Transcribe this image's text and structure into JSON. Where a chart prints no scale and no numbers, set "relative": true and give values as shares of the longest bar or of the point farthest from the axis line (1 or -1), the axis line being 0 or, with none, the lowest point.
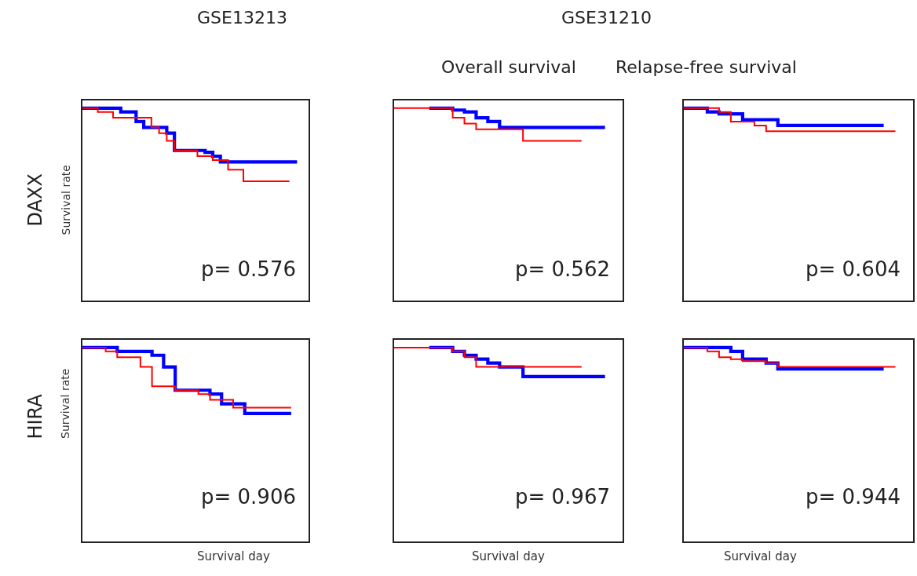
{
  "chart_data": [
    {
      "type": "step",
      "title": "GSE13213",
      "ylabel": "Survival rate",
      "relative": true,
      "annotations": [
        "p= 0.576",
        "DAXX"
      ],
      "categories": [
        null,
        null,
        null,
        null,
        null,
        null,
        null,
        null,
        null,
        null,
        null,
        null,
        null,
        null,
        null,
        null,
        null,
        null,
        null,
        null,
        null,
        null,
        null,
        null,
        null,
        null,
        null,
        null,
        null,
        null
      ],
      "series": [
        {
          "color": "#0000ff",
          "values": [
            1,
            1,
            1,
            1,
            1,
            0.98,
            0.98,
            0.93,
            0.9,
            0.9,
            0.9,
            0.87,
            0.78,
            0.78,
            0.78,
            0.78,
            0.77,
            0.75,
            0.72,
            0.72,
            0.72,
            0.72,
            0.72,
            0.72,
            0.72,
            0.72,
            0.72,
            0.72,
            0.72,
            null
          ]
        },
        {
          "color": "#ff0000",
          "values": [
            1,
            1,
            0.98,
            0.98,
            0.95,
            0.95,
            0.95,
            0.95,
            0.95,
            0.9,
            0.87,
            0.83,
            0.78,
            0.78,
            0.78,
            0.75,
            0.75,
            0.73,
            0.73,
            0.68,
            0.68,
            0.62,
            0.62,
            0.62,
            0.62,
            0.62,
            0.62,
            0.62,
            null,
            null
          ]
        }
      ]
    },
    {
      "type": "step",
      "title": "GSE31210",
      "subtitle": "Overall survival",
      "relative": true,
      "annotations": [
        "p= 0.562"
      ],
      "categories": [
        null,
        null,
        null,
        null,
        null,
        null,
        null,
        null,
        null,
        null,
        null,
        null,
        null,
        null,
        null,
        null,
        null,
        null,
        null,
        null
      ],
      "series": [
        {
          "color": "#0000ff",
          "values": [
            null,
            null,
            null,
            1,
            1,
            0.99,
            0.98,
            0.95,
            0.93,
            0.9,
            0.9,
            0.9,
            0.9,
            0.9,
            0.9,
            0.9,
            0.9,
            0.9,
            0.9,
            null
          ]
        },
        {
          "color": "#ff0000",
          "values": [
            1,
            1,
            1,
            1,
            1,
            0.95,
            0.92,
            0.89,
            0.89,
            0.89,
            0.89,
            0.83,
            0.83,
            0.83,
            0.83,
            0.83,
            0.83,
            null,
            null,
            null
          ]
        }
      ]
    },
    {
      "type": "step",
      "subtitle": "Relapse-free survival",
      "relative": true,
      "annotations": [
        "p= 0.604"
      ],
      "categories": [
        null,
        null,
        null,
        null,
        null,
        null,
        null,
        null,
        null,
        null,
        null,
        null,
        null,
        null,
        null,
        null,
        null,
        null,
        null,
        null
      ],
      "series": [
        {
          "color": "#0000ff",
          "values": [
            1,
            1,
            0.98,
            0.97,
            0.97,
            0.94,
            0.94,
            0.94,
            0.91,
            0.91,
            0.91,
            0.91,
            0.91,
            0.91,
            0.91,
            0.91,
            0.91,
            0.91,
            null,
            null
          ]
        },
        {
          "color": "#ff0000",
          "values": [
            1,
            1,
            1,
            0.98,
            0.93,
            0.93,
            0.91,
            0.88,
            0.88,
            0.88,
            0.88,
            0.88,
            0.88,
            0.88,
            0.88,
            0.88,
            0.88,
            0.88,
            0.88,
            null
          ]
        }
      ]
    },
    {
      "type": "step",
      "ylabel": "Survival rate",
      "xlabel": "Survival day",
      "relative": true,
      "annotations": [
        "p= 0.906",
        "HIRA"
      ],
      "categories": [
        null,
        null,
        null,
        null,
        null,
        null,
        null,
        null,
        null,
        null,
        null,
        null,
        null,
        null,
        null,
        null,
        null,
        null,
        null,
        null
      ],
      "series": [
        {
          "color": "#0000ff",
          "values": [
            1,
            1,
            1,
            0.98,
            0.98,
            0.98,
            0.96,
            0.9,
            0.78,
            0.78,
            0.78,
            0.76,
            0.71,
            0.71,
            0.66,
            0.66,
            0.66,
            0.66,
            0.66,
            null
          ]
        },
        {
          "color": "#ff0000",
          "values": [
            1,
            1,
            0.98,
            0.95,
            0.95,
            0.9,
            0.8,
            0.8,
            0.78,
            0.78,
            0.76,
            0.73,
            0.73,
            0.69,
            0.69,
            0.69,
            0.69,
            0.69,
            0.69,
            null
          ]
        }
      ]
    },
    {
      "type": "step",
      "xlabel": "Survival day",
      "relative": true,
      "annotations": [
        "p= 0.967"
      ],
      "categories": [
        null,
        null,
        null,
        null,
        null,
        null,
        null,
        null,
        null,
        null,
        null,
        null,
        null,
        null,
        null,
        null,
        null,
        null,
        null,
        null
      ],
      "series": [
        {
          "color": "#0000ff",
          "values": [
            null,
            null,
            null,
            1,
            1,
            0.98,
            0.96,
            0.94,
            0.92,
            0.9,
            0.9,
            0.85,
            0.85,
            0.85,
            0.85,
            0.85,
            0.85,
            0.85,
            0.85,
            null
          ]
        },
        {
          "color": "#ff0000",
          "values": [
            1,
            1,
            1,
            1,
            1,
            0.98,
            0.95,
            0.9,
            0.9,
            0.9,
            0.9,
            0.9,
            0.9,
            0.9,
            0.9,
            0.9,
            0.9,
            null,
            null,
            null
          ]
        }
      ]
    },
    {
      "type": "step",
      "xlabel": "Survival day",
      "relative": true,
      "annotations": [
        "p= 0.944"
      ],
      "categories": [
        null,
        null,
        null,
        null,
        null,
        null,
        null,
        null,
        null,
        null,
        null,
        null,
        null,
        null,
        null,
        null,
        null,
        null,
        null,
        null
      ],
      "series": [
        {
          "color": "#0000ff",
          "values": [
            1,
            1,
            1,
            1,
            0.98,
            0.94,
            0.94,
            0.92,
            0.89,
            0.89,
            0.89,
            0.89,
            0.89,
            0.89,
            0.89,
            0.89,
            0.89,
            0.89,
            null,
            null
          ]
        },
        {
          "color": "#ff0000",
          "values": [
            1,
            1,
            0.98,
            0.95,
            0.94,
            0.93,
            0.93,
            0.92,
            0.9,
            0.9,
            0.9,
            0.9,
            0.9,
            0.9,
            0.9,
            0.9,
            0.9,
            0.9,
            0.9,
            null
          ]
        }
      ]
    }
  ]
}
